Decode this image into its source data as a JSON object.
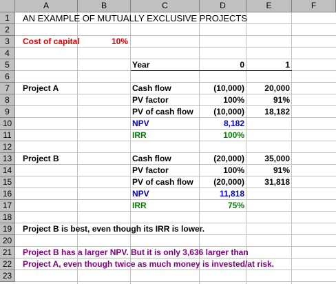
{
  "columns": [
    "A",
    "B",
    "C",
    "D",
    "E",
    "F"
  ],
  "rows": [
    "1",
    "2",
    "3",
    "4",
    "5",
    "6",
    "7",
    "8",
    "9",
    "10",
    "11",
    "12",
    "13",
    "14",
    "15",
    "16",
    "17",
    "18",
    "19",
    "20",
    "21",
    "22",
    "23"
  ],
  "title": "AN EXAMPLE OF MUTUALLY EXCLUSIVE PROJECTS",
  "cost_of_capital": {
    "label": "Cost of capital",
    "value": "10%"
  },
  "year": {
    "label": "Year",
    "y0": "0",
    "y1": "1"
  },
  "project_a": {
    "name": "Project A",
    "cash_flow": {
      "label": "Cash flow",
      "d": "(10,000)",
      "e": "20,000"
    },
    "pv_factor": {
      "label": "PV factor",
      "d": "100%",
      "e": "91%"
    },
    "pv_cash_flow": {
      "label": "PV of cash flow",
      "d": "(10,000)",
      "e": "18,182"
    },
    "npv": {
      "label": "NPV",
      "value": "8,182"
    },
    "irr": {
      "label": "IRR",
      "value": "100%"
    }
  },
  "project_b": {
    "name": "Project B",
    "cash_flow": {
      "label": "Cash flow",
      "d": "(20,000)",
      "e": "35,000"
    },
    "pv_factor": {
      "label": "PV factor",
      "d": "100%",
      "e": "91%"
    },
    "pv_cash_flow": {
      "label": "PV of cash flow",
      "d": "(20,000)",
      "e": "31,818"
    },
    "npv": {
      "label": "NPV",
      "value": "11,818"
    },
    "irr": {
      "label": "IRR",
      "value": "75%"
    }
  },
  "conclusion": "Project B is best, even though its IRR is lower.",
  "note_line1": "Project B has a larger NPV.  But it is only 3,636 larger than",
  "note_line2": "Project A, even though twice as much money is invested/at risk.",
  "colors": {
    "red": "#e00000",
    "blue": "#0000cc",
    "green": "#008000",
    "purple": "#800080"
  }
}
